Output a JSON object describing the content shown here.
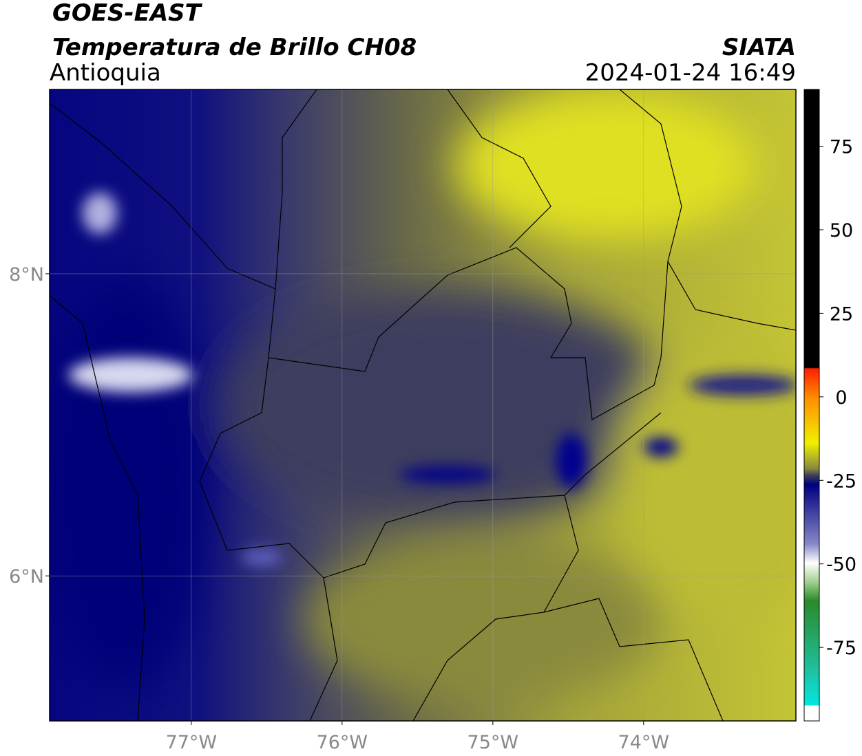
{
  "header": {
    "line1": "GOES-EAST",
    "line2": "Temperatura de Brillo CH08",
    "region": "Antioquia",
    "source": "SIATA",
    "timestamp": "2024-01-24 16:49"
  },
  "map": {
    "xlim": [
      -77.94,
      -72.99
    ],
    "ylim": [
      5.04,
      9.22
    ],
    "xticks": [
      {
        "value": -77,
        "label": "77°W"
      },
      {
        "value": -76,
        "label": "76°W"
      },
      {
        "value": -75,
        "label": "75°W"
      },
      {
        "value": -74,
        "label": "74°W"
      }
    ],
    "yticks": [
      {
        "value": 8,
        "label": "8°N"
      },
      {
        "value": 6,
        "label": "6°N"
      }
    ],
    "grid": true
  },
  "colorbar": {
    "range": [
      -97,
      92
    ],
    "ticks": [
      75,
      50,
      25,
      0,
      -25,
      -50,
      -75
    ]
  }
}
